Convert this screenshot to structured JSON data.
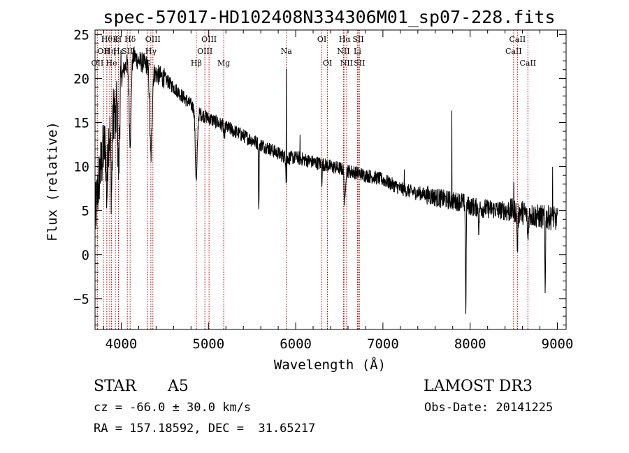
{
  "chart_data": {
    "type": "line",
    "title": "spec-57017-HD102408N334306M01_sp07-228.fits",
    "xlabel": "Wavelength (Å)",
    "ylabel": "Flux (relative)",
    "xlim": [
      3700,
      9100
    ],
    "ylim": [
      -8.5,
      25.5
    ],
    "x_ticks": [
      4000,
      5000,
      6000,
      7000,
      8000,
      9000
    ],
    "y_ticks": [
      -5,
      0,
      5,
      10,
      15,
      20,
      25
    ],
    "grid": false,
    "spectrum_anchors": {
      "x": [
        3700,
        3750,
        3800,
        3850,
        3900,
        3950,
        4000,
        4050,
        4100,
        4150,
        4200,
        4300,
        4400,
        4500,
        4600,
        4700,
        4800,
        4900,
        5000,
        5100,
        5200,
        5300,
        5400,
        5500,
        5600,
        5700,
        5800,
        5900,
        6000,
        6100,
        6200,
        6300,
        6400,
        6500,
        6600,
        6700,
        6800,
        6900,
        7000,
        7100,
        7200,
        7300,
        7400,
        7500,
        7600,
        7700,
        7800,
        7900,
        8000,
        8100,
        8200,
        8300,
        8400,
        8500,
        8600,
        8700,
        8800,
        8900,
        9000
      ],
      "y": [
        4,
        9,
        12,
        13,
        16,
        18,
        20,
        21.5,
        22,
        22.5,
        22,
        21.5,
        20.5,
        20,
        19,
        18,
        17,
        16,
        15.5,
        15,
        14.5,
        14,
        13.5,
        13,
        12.5,
        12,
        11.5,
        11,
        11,
        10.8,
        10.5,
        10.3,
        10,
        9.8,
        9.5,
        9.3,
        9,
        8.8,
        8.5,
        8,
        7.5,
        7.2,
        7,
        6.8,
        6.5,
        6.3,
        6.1,
        6,
        5.5,
        5.3,
        5.2,
        5.1,
        5,
        5,
        4.8,
        4.5,
        4.3,
        4.2,
        4
      ]
    },
    "absorption_features": [
      {
        "x": 3835,
        "depth": 6,
        "width": 10
      },
      {
        "x": 3889,
        "depth": 8,
        "width": 12
      },
      {
        "x": 3934,
        "depth": 4,
        "width": 6
      },
      {
        "x": 3970,
        "depth": 9,
        "width": 14
      },
      {
        "x": 4102,
        "depth": 9,
        "width": 16
      },
      {
        "x": 4340,
        "depth": 10,
        "width": 18
      },
      {
        "x": 4861,
        "depth": 8,
        "width": 16
      },
      {
        "x": 5180,
        "depth": 1.5,
        "width": 8
      },
      {
        "x": 5577,
        "depth": 8,
        "width": 5
      },
      {
        "x": 5893,
        "depth": 3,
        "width": 6
      },
      {
        "x": 6300,
        "depth": 2,
        "width": 5
      },
      {
        "x": 6563,
        "depth": 4,
        "width": 10
      },
      {
        "x": 7950,
        "depth": 12,
        "width": 6
      },
      {
        "x": 8100,
        "depth": 3,
        "width": 5
      },
      {
        "x": 8542,
        "depth": 4,
        "width": 8
      },
      {
        "x": 8662,
        "depth": 3,
        "width": 8
      },
      {
        "x": 8860,
        "depth": 8,
        "width": 5
      }
    ],
    "emission_spikes": [
      {
        "x": 5892,
        "height": 13
      },
      {
        "x": 7790,
        "height": 11
      },
      {
        "x": 7245,
        "height": 3
      },
      {
        "x": 8945,
        "height": 7
      },
      {
        "x": 8500,
        "height": 3
      },
      {
        "x": 6050,
        "height": 2
      }
    ],
    "line_markers": [
      {
        "x": 3727,
        "label": "OII",
        "row": 2
      },
      {
        "x": 3797,
        "label": "OII",
        "row": 1
      },
      {
        "x": 3835,
        "label": "Hθ",
        "row": 0
      },
      {
        "x": 3868,
        "label": "Hη",
        "row": 1
      },
      {
        "x": 3889,
        "label": "He",
        "row": 2
      },
      {
        "x": 3934,
        "label": "K",
        "row": 0
      },
      {
        "x": 3968,
        "label": "H",
        "row": 0
      },
      {
        "x": 3970,
        "label": "Hε",
        "row": 1
      },
      {
        "x": 4070,
        "label": "SII",
        "row": 1
      },
      {
        "x": 4102,
        "label": "Hδ",
        "row": 0
      },
      {
        "x": 4304,
        "label": "G",
        "row": 2
      },
      {
        "x": 4340,
        "label": "Hγ",
        "row": 1
      },
      {
        "x": 4363,
        "label": "OIII",
        "row": 0
      },
      {
        "x": 4861,
        "label": "Hβ",
        "row": 2
      },
      {
        "x": 4959,
        "label": "OIII",
        "row": 1
      },
      {
        "x": 5007,
        "label": "OIII",
        "row": 0
      },
      {
        "x": 5175,
        "label": "Mg",
        "row": 2
      },
      {
        "x": 5893,
        "label": "Na",
        "row": 1
      },
      {
        "x": 6300,
        "label": "OI",
        "row": 0
      },
      {
        "x": 6364,
        "label": "OI",
        "row": 2
      },
      {
        "x": 6548,
        "label": "NII",
        "row": 1
      },
      {
        "x": 6563,
        "label": "Hα",
        "row": 0
      },
      {
        "x": 6584,
        "label": "NII",
        "row": 2
      },
      {
        "x": 6708,
        "label": "Li",
        "row": 1
      },
      {
        "x": 6717,
        "label": "SII",
        "row": 0
      },
      {
        "x": 6731,
        "label": "SII",
        "row": 2
      },
      {
        "x": 8498,
        "label": "CaII",
        "row": 1
      },
      {
        "x": 8542,
        "label": "CaII",
        "row": 0
      },
      {
        "x": 8662,
        "label": "CaII",
        "row": 2
      }
    ],
    "marker_color": "#c00000"
  },
  "info": {
    "object_class": "STAR",
    "subclass": "A5",
    "survey": "LAMOST DR3",
    "cz": "cz = -66.0 ± 30.0 km/s",
    "obs_date": "Obs-Date: 20141225",
    "coords": "RA = 157.18592, DEC =  31.65217"
  }
}
